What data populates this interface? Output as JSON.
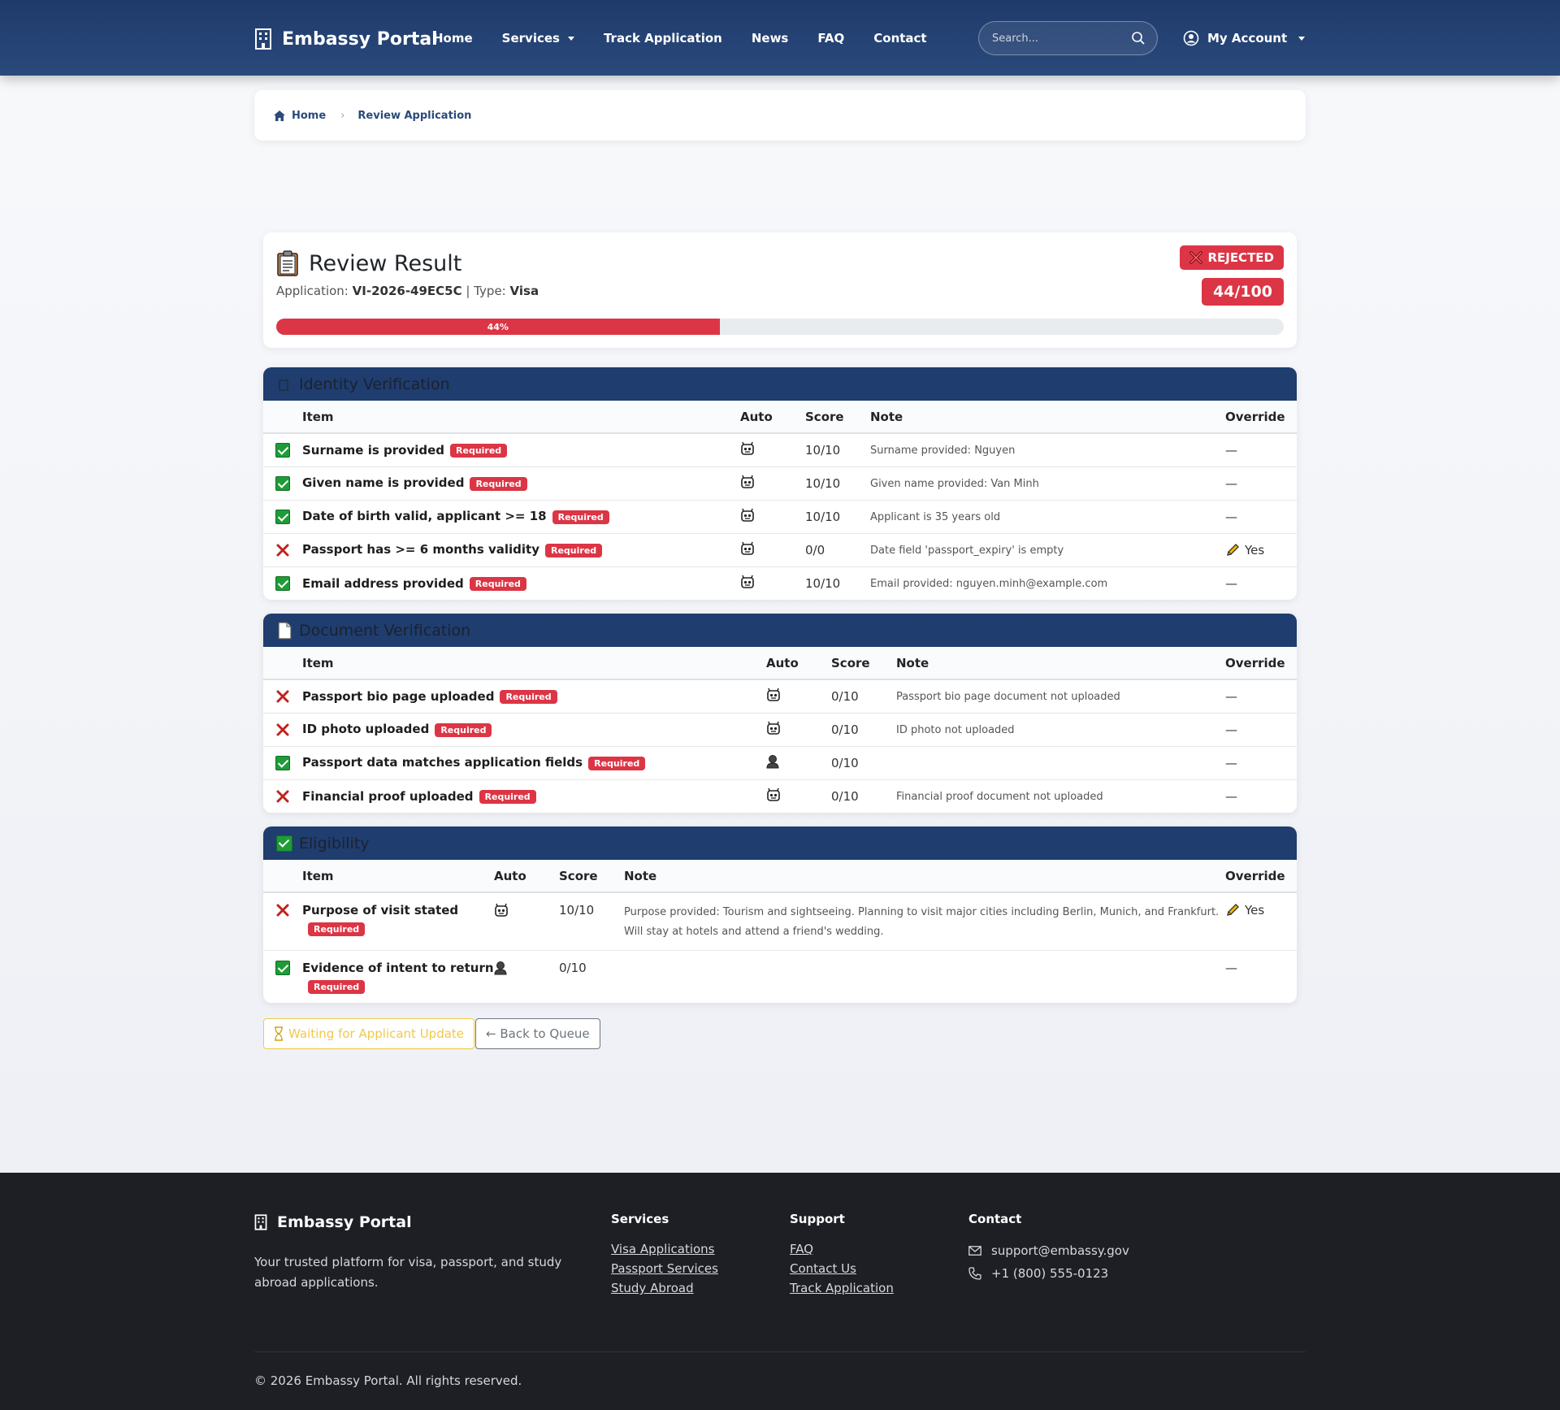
{
  "nav": {
    "brand": "Embassy Portal",
    "links": [
      "Home",
      "Services",
      "Track Application",
      "News",
      "FAQ",
      "Contact"
    ],
    "search_placeholder": "Search...",
    "account": "My Account"
  },
  "breadcrumb": {
    "home": "Home",
    "current": "Review Application"
  },
  "result": {
    "title": "Review Result",
    "application_label": "Application:",
    "application_id": "VI-2026-49EC5C",
    "type_label": "| Type:",
    "type": "Visa",
    "status": "REJECTED",
    "score": "44/100",
    "progress_label": "44%",
    "progress_percent": 44,
    "accent_red": "#dc3545"
  },
  "columns": {
    "item": "Item",
    "auto": "Auto",
    "score": "Score",
    "note": "Note",
    "override": "Override"
  },
  "required_label": "Required",
  "sections": [
    {
      "title": "Identity Verification",
      "icon": "id-card-icon",
      "rows": [
        {
          "status": "pass",
          "item": "Surname is provided",
          "auto": "robot",
          "score": "10/10",
          "note": "Surname provided: Nguyen",
          "override": "—"
        },
        {
          "status": "pass",
          "item": "Given name is provided",
          "auto": "robot",
          "score": "10/10",
          "note": "Given name provided: Van Minh",
          "override": "—"
        },
        {
          "status": "pass",
          "item": "Date of birth valid, applicant >= 18",
          "auto": "robot",
          "score": "10/10",
          "note": "Applicant is 35 years old",
          "override": "—"
        },
        {
          "status": "fail",
          "item": "Passport has >= 6 months validity",
          "auto": "robot",
          "score": "0/0",
          "note": "Date field 'passport_expiry' is empty",
          "override": "Yes"
        },
        {
          "status": "pass",
          "item": "Email address provided",
          "auto": "robot",
          "score": "10/10",
          "note": "Email provided: nguyen.minh@example.com",
          "override": "—"
        }
      ]
    },
    {
      "title": "Document Verification",
      "icon": "document-icon",
      "rows": [
        {
          "status": "fail",
          "item": "Passport bio page uploaded",
          "auto": "robot",
          "score": "0/10",
          "note": "Passport bio page document not uploaded",
          "override": "—"
        },
        {
          "status": "fail",
          "item": "ID photo uploaded",
          "auto": "robot",
          "score": "0/10",
          "note": "ID photo not uploaded",
          "override": "—"
        },
        {
          "status": "pass",
          "item": "Passport data matches application fields",
          "auto": "person",
          "score": "0/10",
          "note": "",
          "override": "—"
        },
        {
          "status": "fail",
          "item": "Financial proof uploaded",
          "auto": "robot",
          "score": "0/10",
          "note": "Financial proof document not uploaded",
          "override": "—"
        }
      ]
    },
    {
      "title": "Eligibility",
      "icon": "check-box-icon",
      "rows": [
        {
          "status": "fail",
          "item": "Purpose of visit stated",
          "auto": "robot",
          "score": "10/10",
          "note": "Purpose provided: Tourism and sightseeing. Planning to visit major cities including Berlin, Munich, and Frankfurt. Will stay at hotels and attend a friend's wedding.",
          "override": "Yes"
        },
        {
          "status": "pass",
          "item": "Evidence of intent to return",
          "auto": "person",
          "score": "0/10",
          "note": "",
          "override": "—"
        }
      ]
    }
  ],
  "actions": {
    "waiting": "Waiting for Applicant Update",
    "back": "← Back to Queue"
  },
  "footer": {
    "brand": "Embassy Portal",
    "description": "Your trusted platform for visa, passport, and study abroad applications.",
    "services_title": "Services",
    "services": [
      "Visa Applications",
      "Passport Services",
      "Study Abroad"
    ],
    "support_title": "Support",
    "support": [
      "FAQ",
      "Contact Us",
      "Track Application"
    ],
    "contact_title": "Contact",
    "email": "support@embassy.gov",
    "phone": "+1 (800) 555-0123",
    "copyright": "© 2026 Embassy Portal. All rights reserved."
  }
}
